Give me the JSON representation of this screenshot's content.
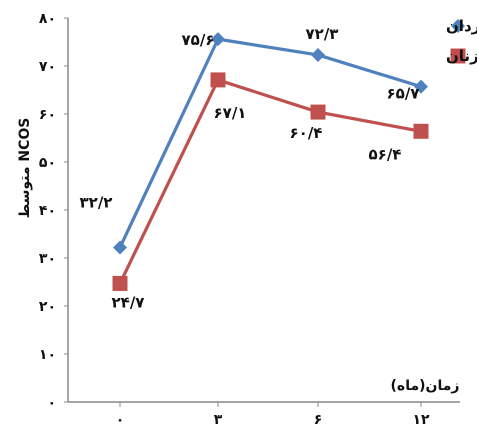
{
  "chart_data": {
    "type": "line",
    "title": "",
    "xlabel": "زمان(ماه)",
    "ylabel": "متوسط NCOS",
    "categories": [
      "۰",
      "۳",
      "۶",
      "۱۲"
    ],
    "ylim": [
      0,
      80
    ],
    "yticks": [
      "۰",
      "۱۰",
      "۲۰",
      "۳۰",
      "۴۰",
      "۵۰",
      "۶۰",
      "۷۰",
      "۸۰"
    ],
    "grid": false,
    "legend_position": "top-right",
    "series": [
      {
        "name": "مردان",
        "color": "#4f81bd",
        "marker": "diamond",
        "values": [
          32.2,
          75.6,
          72.3,
          65.7
        ],
        "labels": [
          "۳۲/۲",
          "۷۵/۶",
          "۷۲/۳",
          "۶۵/۷"
        ]
      },
      {
        "name": "زنان",
        "color": "#c0504d",
        "marker": "square",
        "values": [
          24.7,
          67.1,
          60.4,
          56.4
        ],
        "labels": [
          "۲۴/۷",
          "۶۷/۱",
          "۶۰/۴",
          "۵۶/۴"
        ]
      }
    ]
  }
}
